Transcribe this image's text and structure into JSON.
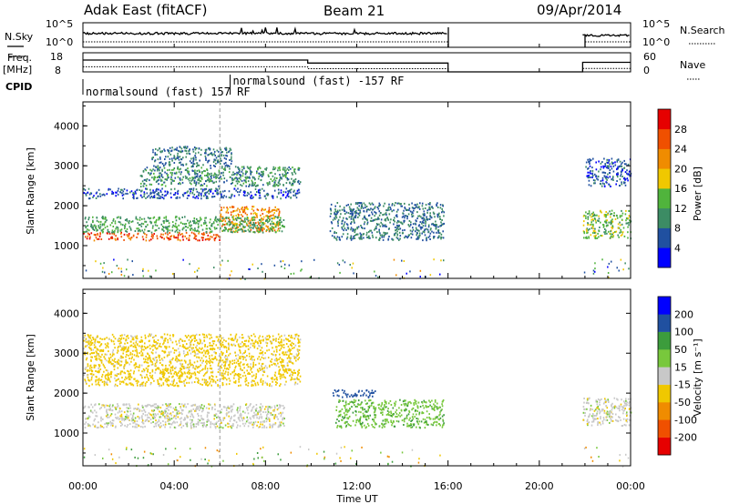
{
  "header": {
    "station": "Adak East (fitACF)",
    "beam": "Beam 21",
    "date": "09/Apr/2014"
  },
  "noise_panel": {
    "left_label": "N.Sky",
    "right_label": "N.Search",
    "left_ticks": [
      "10^5",
      "10^0"
    ],
    "right_ticks": [
      "10^5",
      "10^0"
    ]
  },
  "freq_panel": {
    "left_label_line1": "Freq.",
    "left_label_line2": "[MHz]",
    "right_label": "Nave",
    "left_ticks": [
      "18",
      "8"
    ],
    "right_ticks": [
      "60",
      "0"
    ],
    "freq_level_mhz": [
      [
        0.0,
        14.2
      ],
      [
        9.85,
        12.6
      ],
      [
        21.9,
        13.0
      ]
    ],
    "nave_level": [
      [
        0.0,
        16
      ],
      [
        9.85,
        10
      ],
      [
        21.9,
        11
      ]
    ]
  },
  "cpid": {
    "label": "CPID",
    "modes": [
      "normalsound (fast) 157 RF",
      "normalsound (fast) -157 RF"
    ],
    "switch_hour": 6.45
  },
  "power_panel": {
    "ylabel": "Slant Range [km]",
    "yticks": [
      "1000",
      "2000",
      "3000",
      "4000"
    ],
    "colorbar_label": "Power [dB]",
    "colorbar_ticks": [
      "4",
      "8",
      "12",
      "16",
      "20",
      "24",
      "28"
    ],
    "colors": [
      "#0000ff",
      "#2050a0",
      "#3c8c64",
      "#50b43c",
      "#f0c800",
      "#f08c00",
      "#f05000",
      "#e60000"
    ]
  },
  "velocity_panel": {
    "ylabel": "Slant Range [km]",
    "yticks": [
      "1000",
      "2000",
      "3000",
      "4000"
    ],
    "colorbar_label": "Velocity [m s⁻¹]",
    "colorbar_ticks": [
      "-200",
      "-100",
      "-50",
      "-15",
      "15",
      "50",
      "100",
      "200"
    ],
    "colors": [
      "#e60000",
      "#f05000",
      "#f08c00",
      "#f0c800",
      "#c8c8c8",
      "#78c83c",
      "#3c9c3c",
      "#2050a0",
      "#0000ff"
    ]
  },
  "xaxis": {
    "label": "Time UT",
    "ticks": [
      "00:00",
      "04:00",
      "08:00",
      "12:00",
      "16:00",
      "20:00",
      "00:00"
    ]
  },
  "chart_data": {
    "type": "heatmap",
    "title": "Adak East (fitACF)",
    "subtitle": "Beam 21",
    "xlabel": "Time UT",
    "ylabel": "Slant Range [km]",
    "xlim": [
      0,
      24
    ],
    "ylim": [
      180,
      4600
    ],
    "data_gaps_hours": [
      [
        16.0,
        21.9
      ]
    ],
    "power_regions_db": [
      {
        "t0": 0.0,
        "t1": 6.0,
        "r0": 1150,
        "r1": 1350,
        "value": 26
      },
      {
        "t0": 6.0,
        "t1": 8.6,
        "r0": 1350,
        "r1": 2000,
        "value": 22
      },
      {
        "t0": 0.0,
        "t1": 8.8,
        "r0": 1350,
        "r1": 1750,
        "value": 12
      },
      {
        "t0": 0.0,
        "t1": 9.5,
        "r0": 2200,
        "r1": 2450,
        "value": 6
      },
      {
        "t0": 2.5,
        "t1": 9.5,
        "r0": 2500,
        "r1": 3000,
        "value": 10
      },
      {
        "t0": 3.0,
        "t1": 6.5,
        "r0": 3000,
        "r1": 3500,
        "value": 8
      },
      {
        "t0": 10.8,
        "t1": 15.8,
        "r0": 1150,
        "r1": 2100,
        "value": 8
      },
      {
        "t0": 21.9,
        "t1": 24.0,
        "r0": 1200,
        "r1": 1900,
        "value": 14
      },
      {
        "t0": 22.0,
        "t1": 24.0,
        "r0": 2500,
        "r1": 3200,
        "value": 6
      }
    ],
    "velocity_regions_ms": [
      {
        "t0": 0.0,
        "t1": 8.8,
        "r0": 1150,
        "r1": 1750,
        "value": 0
      },
      {
        "t0": 0.0,
        "t1": 9.5,
        "r0": 2200,
        "r1": 3500,
        "value": -30
      },
      {
        "t0": 10.9,
        "t1": 12.8,
        "r0": 1900,
        "r1": 2100,
        "value": 150
      },
      {
        "t0": 11.0,
        "t1": 15.8,
        "r0": 1150,
        "r1": 1850,
        "value": 40
      },
      {
        "t0": 21.9,
        "t1": 24.0,
        "r0": 1200,
        "r1": 1900,
        "value": 0
      }
    ]
  }
}
